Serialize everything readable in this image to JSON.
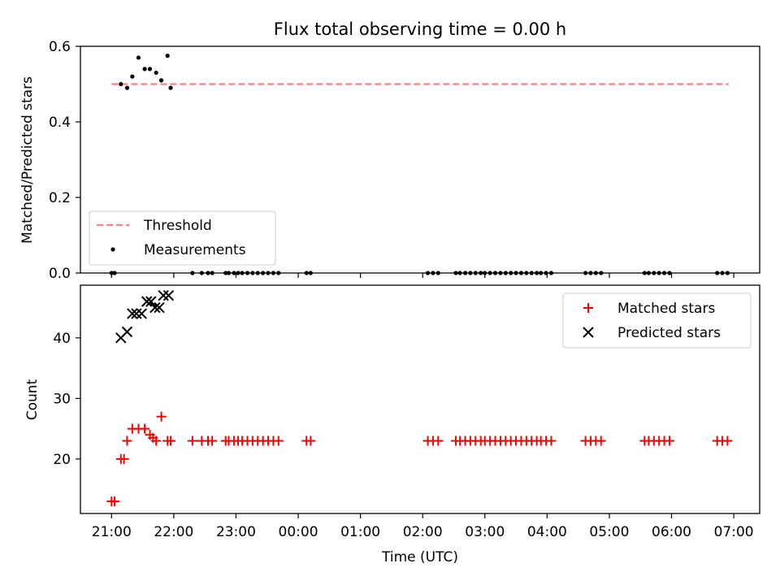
{
  "chart_data": [
    {
      "type": "scatter",
      "title": "Flux total observing time = 0.00 h",
      "xlabel": "",
      "ylabel": "Matched/Predicted stars",
      "xlim": [
        "20:30",
        "07:25"
      ],
      "ylim": [
        0,
        0.6
      ],
      "yticks": [
        0,
        0.2,
        0.4,
        0.6
      ],
      "ytick_labels": [
        "0.0",
        "0.2",
        "0.4",
        "0.6"
      ],
      "legend_position": "lower-left",
      "legend": [
        "Threshold",
        "Measurements"
      ],
      "threshold": {
        "name": "Threshold",
        "value": 0.5,
        "x_range": [
          "21:00",
          "06:55"
        ],
        "color": "#ff7f7f",
        "style": "dashed"
      },
      "series": [
        {
          "name": "Measurements",
          "color": "#000000",
          "x": [
            "21:00",
            "21:03",
            "21:09",
            "21:15",
            "21:20",
            "21:26",
            "21:32",
            "21:37",
            "21:43",
            "21:48",
            "21:54",
            "21:57",
            "22:18",
            "22:27",
            "22:33",
            "22:37",
            "22:50",
            "22:53",
            "22:58",
            "23:02",
            "23:06",
            "23:11",
            "23:16",
            "23:21",
            "23:26",
            "23:31",
            "23:36",
            "23:41",
            "00:08",
            "00:12",
            "02:05",
            "02:10",
            "02:15",
            "02:32",
            "02:36",
            "02:41",
            "02:46",
            "02:51",
            "02:56",
            "03:00",
            "03:05",
            "03:10",
            "03:15",
            "03:20",
            "03:25",
            "03:30",
            "03:35",
            "03:40",
            "03:45",
            "03:50",
            "03:54",
            "03:59",
            "04:04",
            "04:37",
            "04:42",
            "04:47",
            "04:52",
            "05:34",
            "05:38",
            "05:43",
            "05:48",
            "05:53",
            "05:58",
            "06:44",
            "06:49",
            "06:54"
          ],
          "y": [
            0,
            0,
            0.5,
            0.49,
            0.52,
            0.57,
            0.54,
            0.54,
            0.53,
            0.51,
            0.575,
            0.49,
            0,
            0,
            0,
            0,
            0,
            0,
            0,
            0,
            0,
            0,
            0,
            0,
            0,
            0,
            0,
            0,
            0,
            0,
            0,
            0,
            0,
            0,
            0,
            0,
            0,
            0,
            0,
            0,
            0,
            0,
            0,
            0,
            0,
            0,
            0,
            0,
            0,
            0,
            0,
            0,
            0,
            0,
            0,
            0,
            0,
            0,
            0,
            0,
            0,
            0,
            0,
            0,
            0,
            0
          ]
        }
      ]
    },
    {
      "type": "scatter",
      "title": "",
      "xlabel": "Time (UTC)",
      "ylabel": "Count",
      "xlim": [
        "20:30",
        "07:25"
      ],
      "ylim": [
        11,
        48.7
      ],
      "yticks": [
        20,
        30,
        40
      ],
      "ytick_labels": [
        "20",
        "30",
        "40"
      ],
      "xticks": [
        "21:00",
        "22:00",
        "23:00",
        "00:00",
        "01:00",
        "02:00",
        "03:00",
        "04:00",
        "05:00",
        "06:00",
        "07:00"
      ],
      "legend_position": "top-right",
      "legend": [
        "Matched stars",
        "Predicted stars"
      ],
      "series": [
        {
          "name": "Matched stars",
          "marker": "plus",
          "color": "#ff0000",
          "x": [
            "21:00",
            "21:03",
            "21:09",
            "21:12",
            "21:15",
            "21:20",
            "21:26",
            "21:32",
            "21:37",
            "21:40",
            "21:43",
            "21:48",
            "21:54",
            "21:57",
            "22:18",
            "22:27",
            "22:33",
            "22:37",
            "22:50",
            "22:53",
            "22:58",
            "23:02",
            "23:06",
            "23:11",
            "23:16",
            "23:21",
            "23:26",
            "23:31",
            "23:36",
            "23:41",
            "00:08",
            "00:12",
            "02:05",
            "02:10",
            "02:15",
            "02:32",
            "02:36",
            "02:41",
            "02:46",
            "02:51",
            "02:56",
            "03:00",
            "03:05",
            "03:10",
            "03:15",
            "03:20",
            "03:25",
            "03:30",
            "03:35",
            "03:40",
            "03:45",
            "03:50",
            "03:54",
            "03:59",
            "04:04",
            "04:37",
            "04:42",
            "04:47",
            "04:52",
            "05:34",
            "05:38",
            "05:43",
            "05:48",
            "05:53",
            "05:58",
            "06:44",
            "06:49",
            "06:54"
          ],
          "y": [
            13,
            13,
            20,
            20,
            23,
            25,
            25,
            25,
            24,
            23.5,
            23,
            27,
            23,
            23,
            23,
            23,
            23,
            23,
            23,
            23,
            23,
            23,
            23,
            23,
            23,
            23,
            23,
            23,
            23,
            23,
            23,
            23,
            23,
            23,
            23,
            23,
            23,
            23,
            23,
            23,
            23,
            23,
            23,
            23,
            23,
            23,
            23,
            23,
            23,
            23,
            23,
            23,
            23,
            23,
            23,
            23,
            23,
            23,
            23,
            23,
            23,
            23,
            23,
            23,
            23,
            23,
            23,
            23
          ]
        },
        {
          "name": "Predicted stars",
          "marker": "x",
          "color": "#000000",
          "x": [
            "21:09",
            "21:15",
            "21:20",
            "21:24",
            "21:29",
            "21:34",
            "21:38",
            "21:42",
            "21:46",
            "21:50",
            "21:55"
          ],
          "y": [
            40,
            41,
            44,
            44,
            44,
            46,
            46,
            45,
            45,
            47,
            47
          ]
        }
      ]
    }
  ]
}
